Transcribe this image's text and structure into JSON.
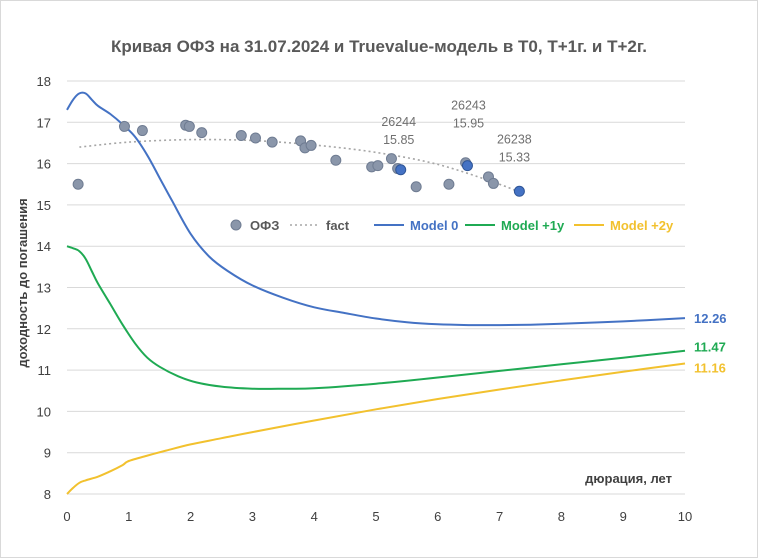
{
  "chart_data": {
    "type": "line",
    "title": "Кривая ОФЗ на 31.07.2024 и Truevalue-модель в Т0, Т+1г. и Т+2г.",
    "xlabel": "дюрация, лет",
    "ylabel": "доходность до погашения",
    "xlim": [
      0,
      10
    ],
    "ylim": [
      8,
      18
    ],
    "xticks": [
      0,
      1,
      2,
      3,
      4,
      5,
      6,
      7,
      8,
      9,
      10
    ],
    "yticks": [
      8,
      9,
      10,
      11,
      12,
      13,
      14,
      15,
      16,
      17,
      18
    ],
    "legend": [
      {
        "name": "ОФЗ",
        "kind": "marker",
        "color": "#8a96aa"
      },
      {
        "name": "fact",
        "kind": "dotted",
        "color": "#a6a6a6"
      },
      {
        "name": "Model 0",
        "kind": "line",
        "color": "#4472c4"
      },
      {
        "name": "Model +1y",
        "kind": "line",
        "color": "#1faa53"
      },
      {
        "name": "Model +2y",
        "kind": "line",
        "color": "#f2c12e"
      }
    ],
    "ofz_points": [
      {
        "x": 0.18,
        "y": 15.5
      },
      {
        "x": 0.93,
        "y": 16.9
      },
      {
        "x": 1.22,
        "y": 16.8
      },
      {
        "x": 1.92,
        "y": 16.93
      },
      {
        "x": 1.98,
        "y": 16.9
      },
      {
        "x": 2.18,
        "y": 16.75
      },
      {
        "x": 2.82,
        "y": 16.68
      },
      {
        "x": 3.05,
        "y": 16.62
      },
      {
        "x": 3.32,
        "y": 16.52
      },
      {
        "x": 3.78,
        "y": 16.55
      },
      {
        "x": 3.85,
        "y": 16.38
      },
      {
        "x": 3.95,
        "y": 16.44
      },
      {
        "x": 4.35,
        "y": 16.08
      },
      {
        "x": 4.93,
        "y": 15.92
      },
      {
        "x": 5.03,
        "y": 15.95
      },
      {
        "x": 5.25,
        "y": 16.12
      },
      {
        "x": 5.35,
        "y": 15.88
      },
      {
        "x": 5.65,
        "y": 15.44
      },
      {
        "x": 6.18,
        "y": 15.5
      },
      {
        "x": 6.45,
        "y": 16.02
      },
      {
        "x": 6.82,
        "y": 15.68
      },
      {
        "x": 6.9,
        "y": 15.52
      }
    ],
    "highlighted_points": [
      {
        "x": 5.4,
        "y": 15.85,
        "label": "26244",
        "value": "15.85"
      },
      {
        "x": 6.48,
        "y": 15.95,
        "label": "26243",
        "value": "15.95"
      },
      {
        "x": 7.32,
        "y": 15.33,
        "label": "26238",
        "value": "15.33"
      }
    ],
    "fact_trend": {
      "x": [
        0.2,
        1,
        2,
        3,
        4,
        5,
        6,
        7,
        7.35
      ],
      "y": [
        16.4,
        16.52,
        16.58,
        16.56,
        16.45,
        16.27,
        15.98,
        15.5,
        15.28
      ]
    },
    "series": [
      {
        "name": "Model 0",
        "color": "#4472c4",
        "x": [
          0,
          0.1,
          0.2,
          0.3,
          0.4,
          0.5,
          0.7,
          0.9,
          1.1,
          1.3,
          1.5,
          1.7,
          2.0,
          2.3,
          2.6,
          3.0,
          3.5,
          4.0,
          4.5,
          5.0,
          5.5,
          6.0,
          6.5,
          7.0,
          7.5,
          8.0,
          9.0,
          10.0
        ],
        "y": [
          17.3,
          17.55,
          17.7,
          17.7,
          17.55,
          17.4,
          17.2,
          16.95,
          16.65,
          16.2,
          15.65,
          15.1,
          14.3,
          13.75,
          13.4,
          13.05,
          12.75,
          12.52,
          12.38,
          12.25,
          12.16,
          12.11,
          12.09,
          12.09,
          12.1,
          12.12,
          12.18,
          12.26
        ],
        "end_label": "12.26"
      },
      {
        "name": "Model +1y",
        "color": "#1faa53",
        "x": [
          0,
          0.1,
          0.2,
          0.3,
          0.4,
          0.5,
          0.7,
          0.9,
          1.1,
          1.3,
          1.5,
          1.8,
          2.1,
          2.5,
          3.0,
          3.5,
          4.0,
          5.0,
          6.0,
          7.0,
          8.0,
          9.0,
          10.0
        ],
        "y": [
          14.0,
          13.95,
          13.88,
          13.7,
          13.4,
          13.1,
          12.6,
          12.1,
          11.65,
          11.3,
          11.08,
          10.85,
          10.7,
          10.6,
          10.55,
          10.55,
          10.56,
          10.67,
          10.82,
          10.98,
          11.14,
          11.3,
          11.47
        ],
        "end_label": "11.47"
      },
      {
        "name": "Model +2y",
        "color": "#f2c12e",
        "x": [
          0,
          0.1,
          0.2,
          0.3,
          0.5,
          0.7,
          0.9,
          1.0,
          1.3,
          1.6,
          2.0,
          2.5,
          3.0,
          4.0,
          5.0,
          6.0,
          7.0,
          8.0,
          9.0,
          10.0
        ],
        "y": [
          8.0,
          8.15,
          8.27,
          8.33,
          8.42,
          8.55,
          8.7,
          8.8,
          8.93,
          9.05,
          9.2,
          9.35,
          9.5,
          9.78,
          10.05,
          10.3,
          10.53,
          10.75,
          10.96,
          11.16
        ],
        "end_label": "11.16"
      }
    ]
  }
}
